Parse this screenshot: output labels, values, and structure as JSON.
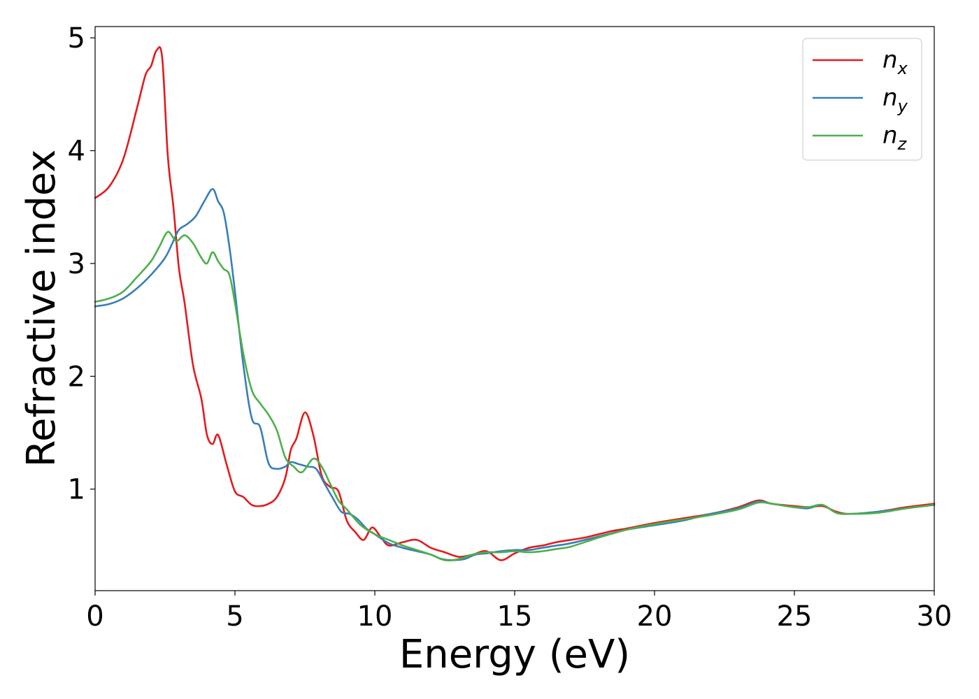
{
  "chart_data": {
    "type": "line",
    "title": "",
    "xlabel": "Energy (eV)",
    "ylabel": "Refractive index",
    "xlim": [
      0,
      30
    ],
    "ylim": [
      0.1,
      5.1
    ],
    "xticks": [
      0,
      5,
      10,
      15,
      20,
      25,
      30
    ],
    "yticks": [
      1,
      2,
      3,
      4,
      5
    ],
    "grid": false,
    "legend_position": "top-right",
    "series": [
      {
        "name": "n",
        "subscript": "x",
        "color": "#e41a1c",
        "x": [
          0,
          0.5,
          1.0,
          1.5,
          1.8,
          2.0,
          2.2,
          2.4,
          2.6,
          2.8,
          3.0,
          3.2,
          3.5,
          3.8,
          4.0,
          4.2,
          4.4,
          4.7,
          5.0,
          5.3,
          5.6,
          5.9,
          6.2,
          6.5,
          6.8,
          7.0,
          7.2,
          7.5,
          7.8,
          8.1,
          8.4,
          8.7,
          9.0,
          9.3,
          9.6,
          9.9,
          10.2,
          10.5,
          11.0,
          11.5,
          12.0,
          12.5,
          13.0,
          13.5,
          14.0,
          14.5,
          15.0,
          15.5,
          16.0,
          16.5,
          17.0,
          17.5,
          18.0,
          18.5,
          19.0,
          20.0,
          21.0,
          22.0,
          23.0,
          23.7,
          24.2,
          25.0,
          25.5,
          26.0,
          26.5,
          27.0,
          28.0,
          29.0,
          30.0
        ],
        "values": [
          3.58,
          3.68,
          3.92,
          4.38,
          4.67,
          4.75,
          4.89,
          4.82,
          3.95,
          3.5,
          2.95,
          2.65,
          2.1,
          1.8,
          1.48,
          1.4,
          1.48,
          1.22,
          0.98,
          0.93,
          0.86,
          0.85,
          0.87,
          0.93,
          1.1,
          1.35,
          1.45,
          1.68,
          1.48,
          1.12,
          1.02,
          0.98,
          0.72,
          0.62,
          0.55,
          0.66,
          0.58,
          0.5,
          0.53,
          0.55,
          0.48,
          0.44,
          0.4,
          0.42,
          0.45,
          0.37,
          0.43,
          0.48,
          0.5,
          0.53,
          0.55,
          0.57,
          0.6,
          0.63,
          0.65,
          0.7,
          0.74,
          0.78,
          0.84,
          0.9,
          0.87,
          0.85,
          0.84,
          0.85,
          0.8,
          0.78,
          0.8,
          0.84,
          0.87
        ]
      },
      {
        "name": "n",
        "subscript": "y",
        "color": "#377eb8",
        "x": [
          0,
          0.5,
          1.0,
          1.5,
          2.0,
          2.5,
          2.8,
          3.0,
          3.3,
          3.6,
          3.9,
          4.2,
          4.4,
          4.6,
          4.8,
          5.0,
          5.3,
          5.6,
          5.9,
          6.2,
          6.5,
          6.8,
          7.0,
          7.3,
          7.6,
          7.9,
          8.2,
          8.5,
          8.8,
          9.1,
          9.4,
          9.7,
          10.0,
          10.5,
          11.0,
          11.5,
          12.0,
          12.4,
          12.8,
          13.2,
          13.6,
          14.0,
          14.5,
          15.0,
          15.5,
          16.0,
          16.5,
          17.0,
          18.0,
          19.0,
          20.0,
          21.0,
          22.0,
          23.0,
          23.7,
          24.2,
          25.0,
          25.5,
          26.0,
          26.5,
          27.0,
          28.0,
          29.0,
          30.0
        ],
        "values": [
          2.62,
          2.64,
          2.69,
          2.78,
          2.9,
          3.05,
          3.2,
          3.3,
          3.35,
          3.42,
          3.55,
          3.66,
          3.55,
          3.45,
          3.15,
          2.75,
          2.1,
          1.63,
          1.55,
          1.23,
          1.18,
          1.2,
          1.24,
          1.22,
          1.2,
          1.18,
          1.05,
          0.92,
          0.8,
          0.78,
          0.73,
          0.65,
          0.6,
          0.52,
          0.48,
          0.45,
          0.42,
          0.38,
          0.37,
          0.38,
          0.42,
          0.43,
          0.45,
          0.46,
          0.46,
          0.48,
          0.5,
          0.52,
          0.58,
          0.64,
          0.68,
          0.72,
          0.78,
          0.83,
          0.89,
          0.87,
          0.84,
          0.83,
          0.86,
          0.79,
          0.78,
          0.8,
          0.83,
          0.86
        ]
      },
      {
        "name": "n",
        "subscript": "z",
        "color": "#4daf4a",
        "x": [
          0,
          0.5,
          1.0,
          1.5,
          2.0,
          2.3,
          2.6,
          2.9,
          3.2,
          3.5,
          3.8,
          4.0,
          4.2,
          4.4,
          4.6,
          4.8,
          5.0,
          5.3,
          5.6,
          5.9,
          6.2,
          6.5,
          6.8,
          7.1,
          7.4,
          7.8,
          8.1,
          8.4,
          8.7,
          9.0,
          9.5,
          10.0,
          10.5,
          11.0,
          11.5,
          12.0,
          12.5,
          13.0,
          13.5,
          14.0,
          14.5,
          15.0,
          15.5,
          16.0,
          16.5,
          17.0,
          18.0,
          19.0,
          20.0,
          21.0,
          22.0,
          23.0,
          23.7,
          24.2,
          25.0,
          25.5,
          26.0,
          26.5,
          27.0,
          28.0,
          29.0,
          30.0
        ],
        "values": [
          2.66,
          2.69,
          2.75,
          2.88,
          3.02,
          3.15,
          3.28,
          3.2,
          3.25,
          3.18,
          3.05,
          3.0,
          3.1,
          3.02,
          2.95,
          2.9,
          2.65,
          2.2,
          1.88,
          1.76,
          1.66,
          1.52,
          1.28,
          1.2,
          1.15,
          1.27,
          1.2,
          1.05,
          0.9,
          0.82,
          0.68,
          0.6,
          0.55,
          0.5,
          0.46,
          0.42,
          0.37,
          0.38,
          0.42,
          0.44,
          0.44,
          0.45,
          0.44,
          0.45,
          0.47,
          0.49,
          0.57,
          0.64,
          0.69,
          0.73,
          0.77,
          0.82,
          0.88,
          0.87,
          0.84,
          0.84,
          0.86,
          0.79,
          0.78,
          0.79,
          0.83,
          0.86
        ]
      }
    ]
  }
}
